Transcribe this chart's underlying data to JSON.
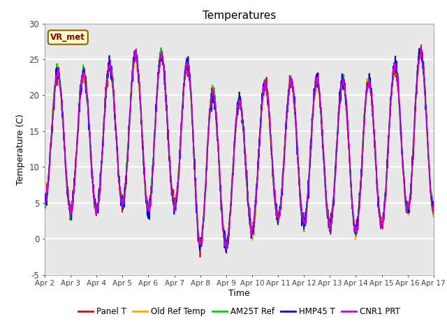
{
  "title": "Temperatures",
  "xlabel": "Time",
  "ylabel": "Temperature (C)",
  "ylim": [
    -5,
    30
  ],
  "xlim": [
    0,
    15
  ],
  "x_tick_labels": [
    "Apr 2",
    "Apr 3",
    "Apr 4",
    "Apr 5",
    "Apr 6",
    "Apr 7",
    "Apr 8",
    "Apr 9",
    "Apr 10",
    "Apr 11",
    "Apr 12",
    "Apr 13",
    "Apr 14",
    "Apr 15",
    "Apr 16",
    "Apr 17"
  ],
  "x_tick_positions": [
    0,
    1,
    2,
    3,
    4,
    5,
    6,
    7,
    8,
    9,
    10,
    11,
    12,
    13,
    14,
    15
  ],
  "y_ticks": [
    -5,
    0,
    5,
    10,
    15,
    20,
    25,
    30
  ],
  "series_colors": [
    "#dd0000",
    "#ffa500",
    "#00cc00",
    "#0000ee",
    "#cc00cc"
  ],
  "series_labels": [
    "Panel T",
    "Old Ref Temp",
    "AM25T Ref",
    "HMP45 T",
    "CNR1 PRT"
  ],
  "legend_label": "VR_met",
  "plot_bg_color": "#e8e8e8",
  "title_fontsize": 11,
  "axis_fontsize": 9,
  "line_width": 1.2,
  "num_points": 1500
}
